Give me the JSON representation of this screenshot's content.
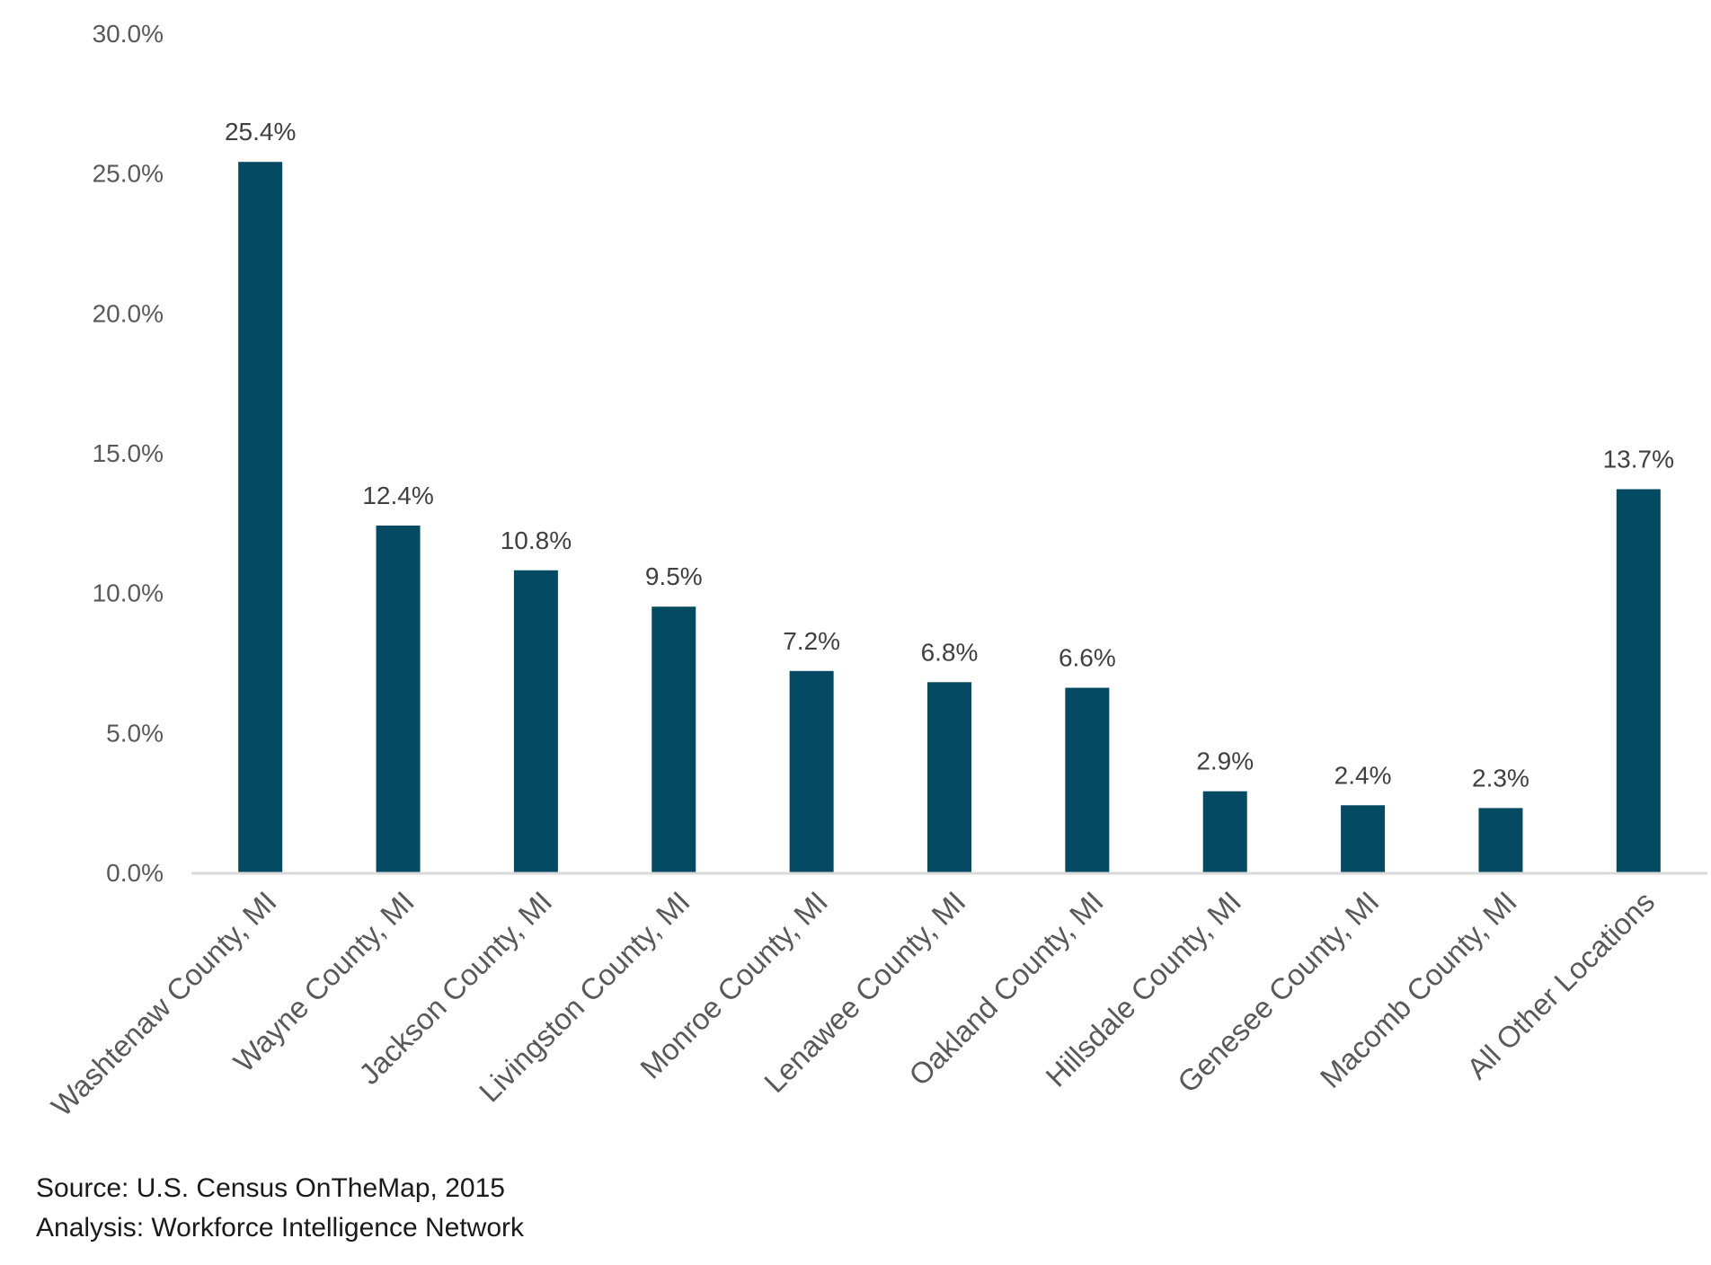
{
  "chart_data": {
    "type": "bar",
    "title": "",
    "xlabel": "",
    "ylabel": "",
    "ylim": [
      0,
      30
    ],
    "y_ticks": [
      "0.0%",
      "5.0%",
      "10.0%",
      "15.0%",
      "20.0%",
      "25.0%",
      "30.0%"
    ],
    "y_tick_values": [
      0,
      5,
      10,
      15,
      20,
      25,
      30
    ],
    "grid": false,
    "legend": "none",
    "categories": [
      "Washtenaw County, MI",
      "Wayne County, MI",
      "Jackson County, MI",
      "Livingston County, MI",
      "Monroe County, MI",
      "Lenawee County, MI",
      "Oakland County, MI",
      "Hillsdale County, MI",
      "Genesee County, MI",
      "Macomb County, MI",
      "All Other Locations"
    ],
    "values": [
      25.4,
      12.4,
      10.8,
      9.5,
      7.2,
      6.8,
      6.6,
      2.9,
      2.4,
      2.3,
      13.7
    ],
    "data_labels": [
      "25.4%",
      "12.4%",
      "10.8%",
      "9.5%",
      "7.2%",
      "6.8%",
      "6.6%",
      "2.9%",
      "2.4%",
      "2.3%",
      "13.7%"
    ],
    "bar_color": "#034a62",
    "axis_color": "#d9d9d9"
  },
  "footer": {
    "source": "Source: U.S. Census OnTheMap, 2015",
    "analysis": "Analysis: Workforce Intelligence Network"
  }
}
